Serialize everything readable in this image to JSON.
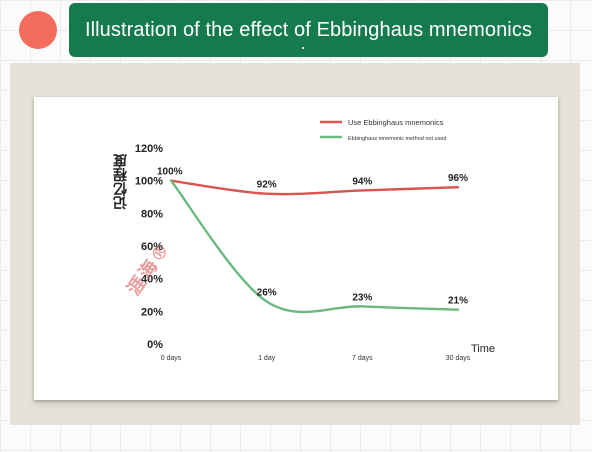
{
  "header": {
    "title": "Illustration of the effect of Ebbinghaus mnemonics",
    "title_bg": "#167a4f",
    "dot_color": "#f26d5b"
  },
  "panel_bg": "#e7e2d8",
  "watermark": "涯海®",
  "chart_data": {
    "type": "line",
    "title": "",
    "xlabel": "Time",
    "ylabel": "记忆程度",
    "categories": [
      "0 days",
      "1 day",
      "7 days",
      "30 days"
    ],
    "y_ticks": [
      "0%",
      "20%",
      "40%",
      "60%",
      "80%",
      "100%",
      "120%"
    ],
    "ylim": [
      0,
      120
    ],
    "grid": false,
    "legend_position": "top-right",
    "series": [
      {
        "name": "Use Ebbinghaus mnemonics",
        "color": "#d9534f",
        "values": [
          100,
          92,
          94,
          96
        ],
        "value_labels": [
          "100%",
          "92%",
          "94%",
          "96%"
        ]
      },
      {
        "name": "Ebbinghaus mnemonic method not used",
        "color": "#6aba7f",
        "values": [
          100,
          26,
          23,
          21
        ],
        "value_labels": [
          "",
          "26%",
          "23%",
          "21%"
        ]
      }
    ]
  }
}
